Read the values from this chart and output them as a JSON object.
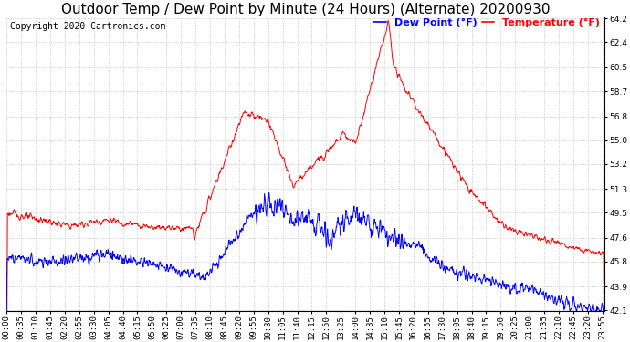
{
  "title": "Outdoor Temp / Dew Point by Minute (24 Hours) (Alternate) 20200930",
  "copyright": "Copyright 2020 Cartronics.com",
  "legend_dew": "Dew Point (°F)",
  "legend_temp": "Temperature (°F)",
  "dew_color": "blue",
  "temp_color": "red",
  "ylim_min": 42.1,
  "ylim_max": 64.2,
  "yticks": [
    42.1,
    43.9,
    45.8,
    47.6,
    49.5,
    51.3,
    53.2,
    55.0,
    56.8,
    58.7,
    60.5,
    62.4,
    64.2
  ],
  "background_color": "#ffffff",
  "grid_color": "#bbbbbb",
  "title_fontsize": 11,
  "tick_fontsize": 6.5,
  "legend_fontsize": 8,
  "copyright_fontsize": 7
}
